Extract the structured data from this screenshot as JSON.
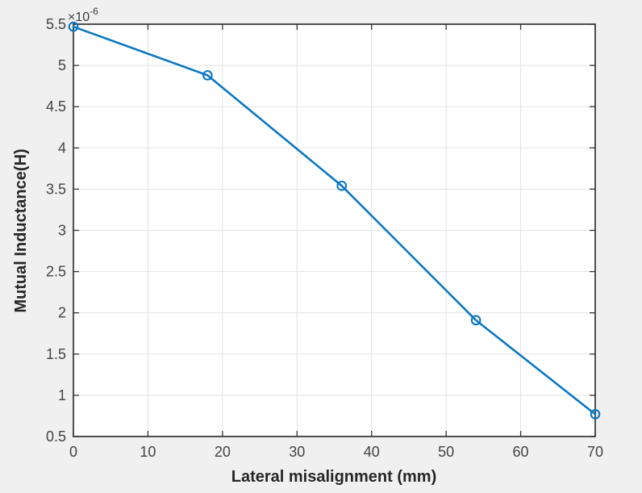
{
  "figure": {
    "background_color": "#f0f0f0",
    "plot_background_color": "#ffffff",
    "axis_color": "#333333",
    "tick_color": "#333333",
    "grid_color": "#e2e2e2",
    "line_color": "#0b77c2",
    "tick_label_color": "#434343",
    "label_color": "#262626"
  },
  "chart_data": {
    "type": "line",
    "title": "",
    "xlabel": "Lateral misalignment (mm)",
    "ylabel": "Mutual Inductance(H)",
    "y_multiplier_base": "×10",
    "y_multiplier_exponent": "-6",
    "x": [
      0,
      18,
      36,
      54,
      70
    ],
    "y": [
      5.47,
      4.88,
      3.54,
      1.91,
      0.77
    ],
    "xlim": [
      0,
      70
    ],
    "ylim": [
      0.5,
      5.5
    ],
    "xticks": [
      0,
      10,
      20,
      30,
      40,
      50,
      60,
      70
    ],
    "yticks": [
      0.5,
      1,
      1.5,
      2,
      2.5,
      3,
      3.5,
      4,
      4.5,
      5,
      5.5
    ],
    "grid": true,
    "marker": "circle-open",
    "legend_position": "none"
  }
}
